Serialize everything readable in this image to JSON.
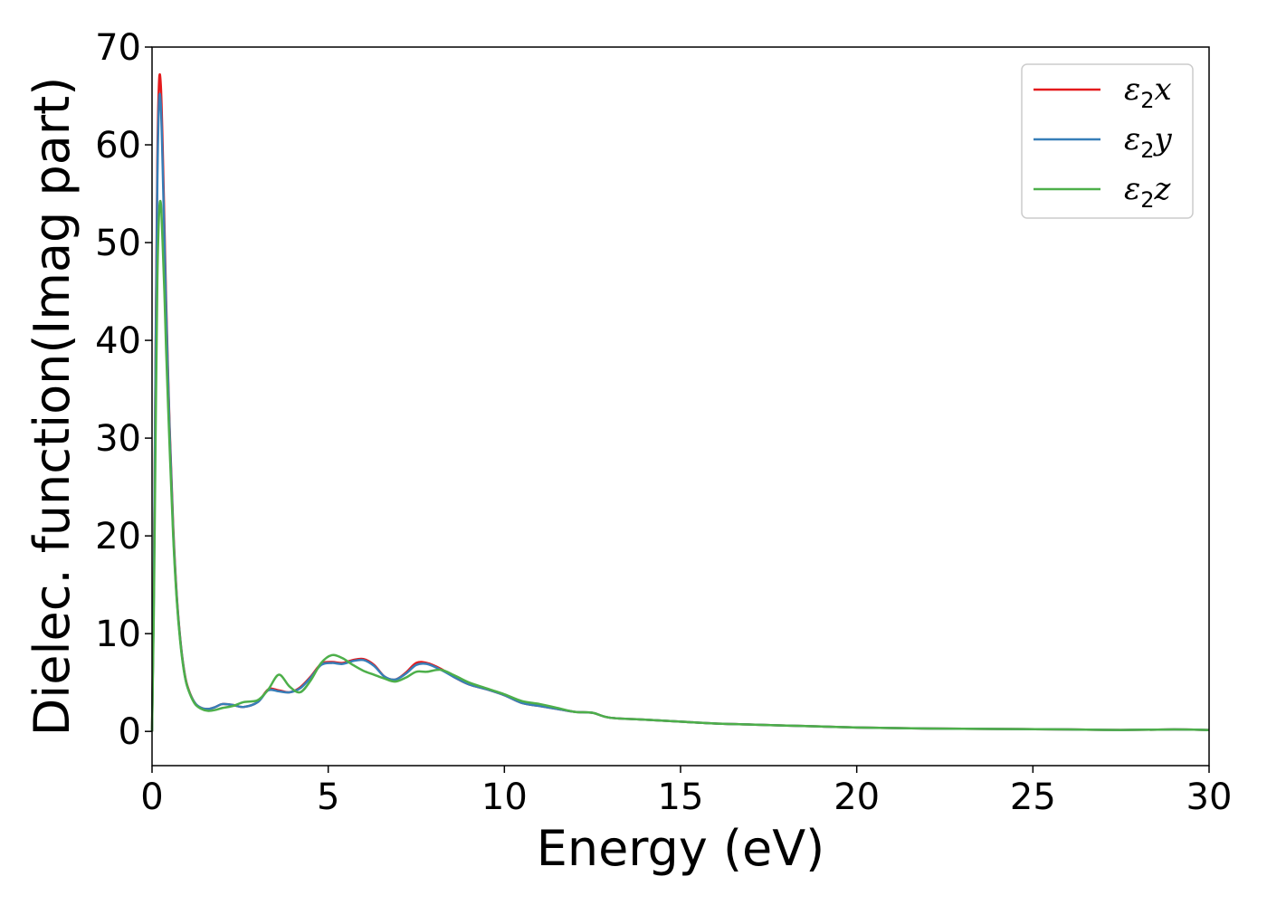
{
  "chart_data": {
    "type": "line",
    "title": "",
    "xlabel": "Energy (eV)",
    "ylabel": "Dielec. function(Imag part)",
    "xlim": [
      0,
      30
    ],
    "ylim": [
      -3.5,
      70
    ],
    "xticks": [
      0,
      5,
      10,
      15,
      20,
      25,
      30
    ],
    "yticks": [
      0,
      10,
      20,
      30,
      40,
      50,
      60,
      70
    ],
    "grid": false,
    "legend_position": "top-right",
    "legend_symbol": "ε",
    "series": [
      {
        "name": "ε2x",
        "legend_sub": "2",
        "legend_var": "x",
        "color": "#e41a1c",
        "x": [
          0,
          0.05,
          0.1,
          0.15,
          0.2,
          0.25,
          0.3,
          0.35,
          0.4,
          0.5,
          0.6,
          0.7,
          0.8,
          0.9,
          1.0,
          1.2,
          1.4,
          1.6,
          1.8,
          2.0,
          2.3,
          2.6,
          3.0,
          3.3,
          3.6,
          3.9,
          4.2,
          4.5,
          4.8,
          5.1,
          5.4,
          5.7,
          6.0,
          6.3,
          6.6,
          6.9,
          7.2,
          7.5,
          7.8,
          8.2,
          8.6,
          9.0,
          9.5,
          10.0,
          10.5,
          11.0,
          11.5,
          12.0,
          12.5,
          13.0,
          14.0,
          15.0,
          16.0,
          17.0,
          18.0,
          19.0,
          20.0,
          22.0,
          24.0,
          26.0,
          27.5,
          29.0,
          30.0
        ],
        "values": [
          0,
          15,
          38,
          58,
          66.5,
          66,
          60,
          52,
          44,
          31,
          21,
          14,
          9.5,
          6.5,
          4.7,
          3.0,
          2.4,
          2.3,
          2.5,
          2.8,
          2.7,
          2.5,
          3.0,
          4.3,
          4.2,
          4.0,
          4.5,
          5.6,
          6.9,
          7.1,
          7.0,
          7.3,
          7.4,
          6.8,
          5.6,
          5.3,
          6.0,
          7.0,
          7.0,
          6.4,
          5.5,
          4.8,
          4.3,
          3.7,
          2.9,
          2.6,
          2.3,
          2.0,
          1.9,
          1.4,
          1.2,
          1.0,
          0.8,
          0.7,
          0.6,
          0.5,
          0.4,
          0.3,
          0.25,
          0.2,
          0.15,
          0.2,
          0.15
        ]
      },
      {
        "name": "ε2y",
        "legend_sub": "2",
        "legend_var": "y",
        "color": "#377eb8",
        "x": [
          0,
          0.05,
          0.1,
          0.15,
          0.2,
          0.25,
          0.3,
          0.35,
          0.4,
          0.5,
          0.6,
          0.7,
          0.8,
          0.9,
          1.0,
          1.2,
          1.4,
          1.6,
          1.8,
          2.0,
          2.3,
          2.6,
          3.0,
          3.3,
          3.6,
          3.9,
          4.2,
          4.5,
          4.8,
          5.1,
          5.4,
          5.7,
          6.0,
          6.3,
          6.6,
          6.9,
          7.2,
          7.5,
          7.8,
          8.2,
          8.6,
          9.0,
          9.5,
          10.0,
          10.5,
          11.0,
          11.5,
          12.0,
          12.5,
          13.0,
          14.0,
          15.0,
          16.0,
          17.0,
          18.0,
          19.0,
          20.0,
          22.0,
          24.0,
          26.0,
          27.5,
          29.0,
          30.0
        ],
        "values": [
          0,
          14,
          37,
          56,
          64.5,
          64,
          58,
          50.5,
          43,
          30.5,
          20.5,
          13.8,
          9.4,
          6.4,
          4.6,
          3.0,
          2.4,
          2.3,
          2.5,
          2.8,
          2.7,
          2.5,
          3.0,
          4.2,
          4.1,
          4.0,
          4.4,
          5.5,
          6.8,
          7.0,
          6.9,
          7.2,
          7.3,
          6.7,
          5.6,
          5.3,
          5.9,
          6.8,
          6.9,
          6.3,
          5.5,
          4.8,
          4.3,
          3.7,
          2.9,
          2.6,
          2.3,
          2.0,
          1.9,
          1.4,
          1.2,
          1.0,
          0.8,
          0.7,
          0.6,
          0.5,
          0.4,
          0.3,
          0.25,
          0.2,
          0.15,
          0.2,
          0.15
        ]
      },
      {
        "name": "ε2z",
        "legend_sub": "2",
        "legend_var": "z",
        "color": "#4daf4a",
        "x": [
          0,
          0.05,
          0.1,
          0.15,
          0.2,
          0.25,
          0.3,
          0.35,
          0.4,
          0.5,
          0.6,
          0.7,
          0.8,
          0.9,
          1.0,
          1.2,
          1.4,
          1.6,
          1.8,
          2.0,
          2.3,
          2.6,
          3.0,
          3.3,
          3.6,
          3.9,
          4.2,
          4.5,
          4.8,
          5.1,
          5.4,
          5.7,
          6.0,
          6.3,
          6.6,
          6.9,
          7.2,
          7.5,
          7.8,
          8.2,
          8.6,
          9.0,
          9.5,
          10.0,
          10.5,
          11.0,
          11.5,
          12.0,
          12.5,
          13.0,
          14.0,
          15.0,
          16.0,
          17.0,
          18.0,
          19.0,
          20.0,
          22.0,
          24.0,
          26.0,
          27.5,
          29.0,
          30.0
        ],
        "values": [
          0,
          12,
          30,
          46,
          53,
          54,
          50,
          45,
          39,
          29,
          20,
          13.5,
          9.2,
          6.3,
          4.6,
          2.9,
          2.3,
          2.1,
          2.2,
          2.4,
          2.6,
          3.0,
          3.2,
          4.3,
          5.8,
          4.6,
          4.0,
          5.2,
          7.0,
          7.8,
          7.5,
          6.8,
          6.2,
          5.8,
          5.4,
          5.1,
          5.5,
          6.1,
          6.1,
          6.3,
          5.7,
          5.0,
          4.4,
          3.8,
          3.1,
          2.8,
          2.4,
          2.0,
          1.9,
          1.4,
          1.2,
          1.0,
          0.8,
          0.7,
          0.6,
          0.5,
          0.4,
          0.3,
          0.25,
          0.2,
          0.15,
          0.2,
          0.15
        ]
      }
    ]
  }
}
